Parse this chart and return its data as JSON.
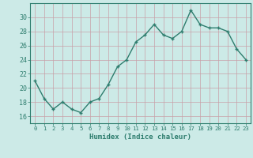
{
  "x": [
    0,
    1,
    2,
    3,
    4,
    5,
    6,
    7,
    8,
    9,
    10,
    11,
    12,
    13,
    14,
    15,
    16,
    17,
    18,
    19,
    20,
    21,
    22,
    23
  ],
  "y": [
    21.0,
    18.5,
    17.0,
    18.0,
    17.0,
    16.5,
    18.0,
    18.5,
    20.5,
    23.0,
    24.0,
    26.5,
    27.5,
    29.0,
    27.5,
    27.0,
    28.0,
    31.0,
    29.0,
    28.5,
    28.5,
    28.0,
    25.5,
    24.0
  ],
  "line_color": "#2e7d6e",
  "bg_color": "#cceae7",
  "grid_color": "#c8a0a8",
  "xlabel": "Humidex (Indice chaleur)",
  "ylim": [
    15,
    32
  ],
  "xlim": [
    -0.5,
    23.5
  ],
  "yticks": [
    16,
    18,
    20,
    22,
    24,
    26,
    28,
    30
  ],
  "xticks": [
    0,
    1,
    2,
    3,
    4,
    5,
    6,
    7,
    8,
    9,
    10,
    11,
    12,
    13,
    14,
    15,
    16,
    17,
    18,
    19,
    20,
    21,
    22,
    23
  ],
  "marker_size": 2.5,
  "line_width": 1.0
}
